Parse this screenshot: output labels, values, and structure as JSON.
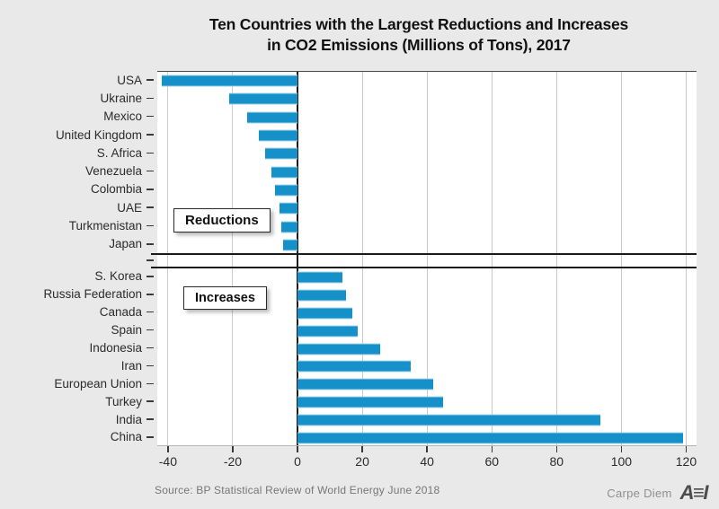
{
  "title": {
    "line1": "Ten Countries with the Largest Reductions and Increases",
    "line2": "in CO2 Emissions (Millions of Tons), 2017"
  },
  "chart_data": {
    "type": "bar",
    "orientation": "horizontal",
    "title": "Ten Countries with the Largest Reductions and Increases in CO2 Emissions (Millions of Tons), 2017",
    "xlim": [
      -43.3,
      123.2
    ],
    "x_ticks": [
      -40,
      -20,
      0,
      20,
      40,
      60,
      80,
      100,
      120
    ],
    "grid": true,
    "legend": "none",
    "bar_color": "#1590c8",
    "sections": [
      {
        "label": "Reductions",
        "categories": [
          "USA",
          "Ukraine",
          "Mexico",
          "United Kingdom",
          "S. Africa",
          "Venezuela",
          "Colombia",
          "UAE",
          "Turkmenistan",
          "Japan"
        ],
        "values": [
          -42,
          -21,
          -15.5,
          -12,
          -10,
          -8,
          -7,
          -5.5,
          -5,
          -4.5
        ]
      },
      {
        "label": "Increases",
        "categories": [
          "S. Korea",
          "Russia Federation",
          "Canada",
          "Spain",
          "Indonesia",
          "Iran",
          "European Union",
          "Turkey",
          "India",
          "China"
        ],
        "values": [
          14,
          15,
          17,
          18.5,
          25.5,
          35,
          42,
          45,
          93.5,
          119
        ]
      }
    ]
  },
  "annotations": {
    "reductions_label": "Reductions",
    "increases_label": "Increases"
  },
  "source": "Source: BP Statistical Review of World Energy June 2018",
  "branding": {
    "text": "Carpe Diem",
    "logo": "AEI",
    "logo_stylized": "A≡I"
  },
  "colors": {
    "background": "#e9e9e9",
    "plot_background": "#ffffff",
    "bar": "#1590c8",
    "gridline": "#cbcbcb",
    "zero_line": "#1a1a1a",
    "separator": "#1a1a1a",
    "title_text": "#111111",
    "label_text": "#2b2b2b",
    "source_text": "#767676",
    "branding_text": "#8f8f8f",
    "logo": "#4c4c4c"
  }
}
